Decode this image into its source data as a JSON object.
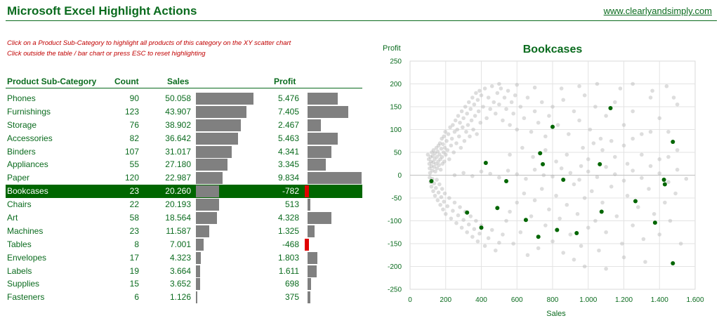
{
  "header": {
    "title": "Microsoft Excel Highlight Actions",
    "site": "www.clearlyandsimply.com"
  },
  "instructions": {
    "line1": "Click on a Product Sub-Category to highlight all products of this category on the XY scatter chart",
    "line2": "Click outside the table / bar chart or press ESC to reset highlighting"
  },
  "table": {
    "headers": {
      "category": "Product Sub-Category",
      "count": "Count",
      "sales": "Sales",
      "profit": "Profit"
    },
    "highlighted": "Bookcases",
    "rows": [
      {
        "category": "Phones",
        "count": "90",
        "sales": "50.058",
        "profit": "5.476",
        "sales_value": 50058,
        "profit_value": 5476
      },
      {
        "category": "Furnishings",
        "count": "123",
        "sales": "43.907",
        "profit": "7.405",
        "sales_value": 43907,
        "profit_value": 7405
      },
      {
        "category": "Storage",
        "count": "76",
        "sales": "38.902",
        "profit": "2.467",
        "sales_value": 38902,
        "profit_value": 2467
      },
      {
        "category": "Accessories",
        "count": "82",
        "sales": "36.642",
        "profit": "5.463",
        "sales_value": 36642,
        "profit_value": 5463
      },
      {
        "category": "Binders",
        "count": "107",
        "sales": "31.017",
        "profit": "4.341",
        "sales_value": 31017,
        "profit_value": 4341
      },
      {
        "category": "Appliances",
        "count": "55",
        "sales": "27.180",
        "profit": "3.345",
        "sales_value": 27180,
        "profit_value": 3345
      },
      {
        "category": "Paper",
        "count": "120",
        "sales": "22.987",
        "profit": "9.834",
        "sales_value": 22987,
        "profit_value": 9834
      },
      {
        "category": "Bookcases",
        "count": "23",
        "sales": "20.260",
        "profit": "-782",
        "sales_value": 20260,
        "profit_value": -782
      },
      {
        "category": "Chairs",
        "count": "22",
        "sales": "20.193",
        "profit": "513",
        "sales_value": 20193,
        "profit_value": 513
      },
      {
        "category": "Art",
        "count": "58",
        "sales": "18.564",
        "profit": "4.328",
        "sales_value": 18564,
        "profit_value": 4328
      },
      {
        "category": "Machines",
        "count": "23",
        "sales": "11.587",
        "profit": "1.325",
        "sales_value": 11587,
        "profit_value": 1325
      },
      {
        "category": "Tables",
        "count": "8",
        "sales": "7.001",
        "profit": "-468",
        "sales_value": 7001,
        "profit_value": -468
      },
      {
        "category": "Envelopes",
        "count": "17",
        "sales": "4.323",
        "profit": "1.803",
        "sales_value": 4323,
        "profit_value": 1803
      },
      {
        "category": "Labels",
        "count": "19",
        "sales": "3.664",
        "profit": "1.611",
        "sales_value": 3664,
        "profit_value": 1611
      },
      {
        "category": "Supplies",
        "count": "15",
        "sales": "3.652",
        "profit": "698",
        "sales_value": 3652,
        "profit_value": 698
      },
      {
        "category": "Fasteners",
        "count": "6",
        "sales": "1.126",
        "profit": "375",
        "sales_value": 1126,
        "profit_value": 375
      }
    ]
  },
  "colors": {
    "accent": "#0a6b1e",
    "highlight_row": "#006600",
    "bar": "#808080",
    "negative_bar": "#e00000",
    "instruction_text": "#c00000",
    "highlight_point": "#006600",
    "background_point": "#b4b4b4"
  },
  "chart_data": {
    "type": "scatter",
    "title": "Bookcases",
    "xlabel": "Sales",
    "ylabel": "Profit",
    "xlim": [
      0,
      1600
    ],
    "ylim": [
      -250,
      250
    ],
    "xticks": [
      "0",
      "200",
      "400",
      "600",
      "800",
      "1.000",
      "1.200",
      "1.400",
      "1.600"
    ],
    "yticks": [
      "250",
      "200",
      "150",
      "100",
      "50",
      "0",
      "-50",
      "-100",
      "-150",
      "-200",
      "-250"
    ],
    "grid": true,
    "legend": "none",
    "series": [
      {
        "name": "Bookcases",
        "points": [
          [
            120,
            -13
          ],
          [
            320,
            -82
          ],
          [
            400,
            -115
          ],
          [
            425,
            27
          ],
          [
            490,
            -72
          ],
          [
            540,
            -13
          ],
          [
            650,
            -98
          ],
          [
            720,
            -135
          ],
          [
            730,
            48
          ],
          [
            745,
            24
          ],
          [
            800,
            106
          ],
          [
            825,
            -120
          ],
          [
            860,
            -10
          ],
          [
            935,
            -127
          ],
          [
            1065,
            24
          ],
          [
            1075,
            -80
          ],
          [
            1125,
            147
          ],
          [
            1265,
            -57
          ],
          [
            1375,
            -104
          ],
          [
            1425,
            -10
          ],
          [
            1430,
            -20
          ],
          [
            1475,
            73
          ],
          [
            1475,
            -193
          ]
        ]
      }
    ],
    "background_points": [
      [
        100,
        45
      ],
      [
        105,
        35
      ],
      [
        108,
        25
      ],
      [
        110,
        15
      ],
      [
        112,
        5
      ],
      [
        115,
        40
      ],
      [
        118,
        30
      ],
      [
        120,
        20
      ],
      [
        122,
        50
      ],
      [
        125,
        10
      ],
      [
        128,
        42
      ],
      [
        130,
        28
      ],
      [
        132,
        55
      ],
      [
        135,
        18
      ],
      [
        138,
        35
      ],
      [
        140,
        48
      ],
      [
        142,
        8
      ],
      [
        145,
        25
      ],
      [
        148,
        60
      ],
      [
        150,
        40
      ],
      [
        152,
        15
      ],
      [
        155,
        52
      ],
      [
        158,
        30
      ],
      [
        160,
        65
      ],
      [
        162,
        22
      ],
      [
        165,
        45
      ],
      [
        168,
        70
      ],
      [
        170,
        35
      ],
      [
        172,
        12
      ],
      [
        175,
        58
      ],
      [
        178,
        80
      ],
      [
        180,
        40
      ],
      [
        182,
        25
      ],
      [
        185,
        68
      ],
      [
        188,
        50
      ],
      [
        190,
        85
      ],
      [
        192,
        30
      ],
      [
        195,
        60
      ],
      [
        198,
        95
      ],
      [
        200,
        45
      ],
      [
        205,
        75
      ],
      [
        210,
        55
      ],
      [
        215,
        90
      ],
      [
        220,
        35
      ],
      [
        225,
        105
      ],
      [
        230,
        65
      ],
      [
        235,
        80
      ],
      [
        240,
        110
      ],
      [
        245,
        50
      ],
      [
        250,
        95
      ],
      [
        255,
        120
      ],
      [
        260,
        70
      ],
      [
        265,
        100
      ],
      [
        270,
        130
      ],
      [
        275,
        85
      ],
      [
        280,
        115
      ],
      [
        285,
        60
      ],
      [
        290,
        140
      ],
      [
        295,
        105
      ],
      [
        300,
        125
      ],
      [
        305,
        75
      ],
      [
        310,
        150
      ],
      [
        315,
        95
      ],
      [
        320,
        135
      ],
      [
        325,
        110
      ],
      [
        330,
        160
      ],
      [
        335,
        85
      ],
      [
        340,
        145
      ],
      [
        345,
        120
      ],
      [
        350,
        170
      ],
      [
        355,
        100
      ],
      [
        360,
        155
      ],
      [
        365,
        130
      ],
      [
        370,
        180
      ],
      [
        375,
        90
      ],
      [
        380,
        165
      ],
      [
        385,
        140
      ],
      [
        390,
        185
      ],
      [
        395,
        115
      ],
      [
        400,
        175
      ],
      [
        410,
        150
      ],
      [
        420,
        190
      ],
      [
        430,
        125
      ],
      [
        440,
        170
      ],
      [
        450,
        145
      ],
      [
        460,
        195
      ],
      [
        470,
        160
      ],
      [
        480,
        135
      ],
      [
        490,
        180
      ],
      [
        500,
        155
      ],
      [
        510,
        190
      ],
      [
        520,
        120
      ],
      [
        530,
        170
      ],
      [
        540,
        145
      ],
      [
        550,
        185
      ],
      [
        560,
        110
      ],
      [
        570,
        160
      ],
      [
        580,
        135
      ],
      [
        590,
        175
      ],
      [
        600,
        100
      ],
      [
        620,
        150
      ],
      [
        640,
        125
      ],
      [
        660,
        170
      ],
      [
        680,
        95
      ],
      [
        700,
        140
      ],
      [
        720,
        115
      ],
      [
        740,
        160
      ],
      [
        760,
        85
      ],
      [
        780,
        130
      ],
      [
        800,
        150
      ],
      [
        830,
        110
      ],
      [
        860,
        165
      ],
      [
        890,
        90
      ],
      [
        920,
        140
      ],
      [
        950,
        120
      ],
      [
        980,
        175
      ],
      [
        1010,
        100
      ],
      [
        1040,
        150
      ],
      [
        1070,
        80
      ],
      [
        1100,
        130
      ],
      [
        1150,
        160
      ],
      [
        1200,
        110
      ],
      [
        1250,
        140
      ],
      [
        1300,
        90
      ],
      [
        1350,
        170
      ],
      [
        1400,
        125
      ],
      [
        1450,
        95
      ],
      [
        1500,
        155
      ],
      [
        110,
        -5
      ],
      [
        115,
        -15
      ],
      [
        120,
        -25
      ],
      [
        125,
        -8
      ],
      [
        130,
        -35
      ],
      [
        135,
        -18
      ],
      [
        140,
        -45
      ],
      [
        145,
        -28
      ],
      [
        150,
        -10
      ],
      [
        155,
        -55
      ],
      [
        160,
        -38
      ],
      [
        165,
        -20
      ],
      [
        170,
        -65
      ],
      [
        175,
        -48
      ],
      [
        180,
        -30
      ],
      [
        185,
        -75
      ],
      [
        190,
        -58
      ],
      [
        195,
        -40
      ],
      [
        200,
        -85
      ],
      [
        210,
        -68
      ],
      [
        220,
        -50
      ],
      [
        230,
        -95
      ],
      [
        240,
        -78
      ],
      [
        250,
        -60
      ],
      [
        260,
        -105
      ],
      [
        270,
        -88
      ],
      [
        280,
        -70
      ],
      [
        290,
        -115
      ],
      [
        300,
        -98
      ],
      [
        310,
        -80
      ],
      [
        320,
        -125
      ],
      [
        330,
        -108
      ],
      [
        340,
        -90
      ],
      [
        350,
        -135
      ],
      [
        360,
        -118
      ],
      [
        370,
        -100
      ],
      [
        380,
        -145
      ],
      [
        390,
        -128
      ],
      [
        400,
        -110
      ],
      [
        420,
        -155
      ],
      [
        440,
        -138
      ],
      [
        460,
        -120
      ],
      [
        480,
        -165
      ],
      [
        500,
        -148
      ],
      [
        520,
        -130
      ],
      [
        540,
        -100
      ],
      [
        560,
        -80
      ],
      [
        580,
        -150
      ],
      [
        600,
        -60
      ],
      [
        620,
        -125
      ],
      [
        640,
        -40
      ],
      [
        660,
        -175
      ],
      [
        680,
        -90
      ],
      [
        700,
        -55
      ],
      [
        720,
        -160
      ],
      [
        740,
        -30
      ],
      [
        760,
        -110
      ],
      [
        780,
        -75
      ],
      [
        800,
        -145
      ],
      [
        820,
        -45
      ],
      [
        840,
        -95
      ],
      [
        860,
        -170
      ],
      [
        880,
        -65
      ],
      [
        900,
        -130
      ],
      [
        920,
        -20
      ],
      [
        940,
        -85
      ],
      [
        960,
        -155
      ],
      [
        980,
        -50
      ],
      [
        1000,
        -115
      ],
      [
        1020,
        -35
      ],
      [
        1040,
        -100
      ],
      [
        1060,
        -165
      ],
      [
        1080,
        -60
      ],
      [
        1100,
        -125
      ],
      [
        1130,
        -25
      ],
      [
        1160,
        -90
      ],
      [
        1190,
        -150
      ],
      [
        1220,
        -45
      ],
      [
        1250,
        -110
      ],
      [
        1280,
        -70
      ],
      [
        1310,
        -140
      ],
      [
        1340,
        -30
      ],
      [
        1370,
        -85
      ],
      [
        1400,
        -130
      ],
      [
        1430,
        -60
      ],
      [
        1460,
        -100
      ],
      [
        1490,
        -40
      ],
      [
        1520,
        -150
      ],
      [
        250,
        0
      ],
      [
        300,
        5
      ],
      [
        350,
        -2
      ],
      [
        400,
        8
      ],
      [
        450,
        3
      ],
      [
        500,
        -5
      ],
      [
        550,
        10
      ],
      [
        600,
        2
      ],
      [
        650,
        -8
      ],
      [
        700,
        12
      ],
      [
        750,
        0
      ],
      [
        800,
        -3
      ],
      [
        850,
        15
      ],
      [
        900,
        5
      ],
      [
        950,
        -10
      ],
      [
        1000,
        8
      ],
      [
        1050,
        -4
      ],
      [
        1100,
        18
      ],
      [
        1150,
        2
      ],
      [
        1200,
        -12
      ],
      [
        1250,
        10
      ],
      [
        1300,
        -6
      ],
      [
        1350,
        20
      ],
      [
        1400,
        4
      ],
      [
        1450,
        -15
      ],
      [
        1500,
        12
      ],
      [
        1550,
        -8
      ],
      [
        1200,
        65
      ],
      [
        1300,
        45
      ],
      [
        1400,
        35
      ],
      [
        1450,
        40
      ],
      [
        1500,
        55
      ],
      [
        1480,
        170
      ],
      [
        1440,
        195
      ],
      [
        1360,
        185
      ],
      [
        1250,
        200
      ],
      [
        1180,
        190
      ],
      [
        1050,
        200
      ],
      [
        950,
        195
      ],
      [
        850,
        190
      ],
      [
        600,
        198
      ],
      [
        700,
        192
      ],
      [
        500,
        200
      ],
      [
        980,
        -200
      ],
      [
        1200,
        -180
      ],
      [
        1320,
        -190
      ],
      [
        1100,
        -205
      ],
      [
        920,
        -185
      ],
      [
        1000,
        35
      ],
      [
        960,
        20
      ],
      [
        880,
        45
      ],
      [
        820,
        30
      ],
      [
        760,
        55
      ],
      [
        690,
        40
      ],
      [
        630,
        60
      ],
      [
        560,
        45
      ],
      [
        1150,
        40
      ],
      [
        1220,
        25
      ],
      [
        1080,
        55
      ],
      [
        1130,
        75
      ],
      [
        1030,
        70
      ],
      [
        970,
        60
      ],
      [
        1250,
        80
      ],
      [
        1350,
        95
      ]
    ]
  }
}
